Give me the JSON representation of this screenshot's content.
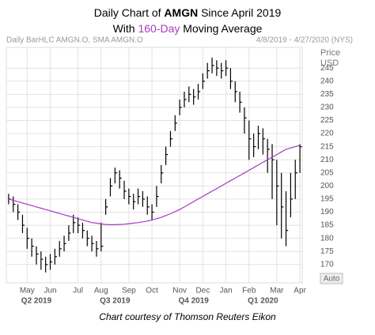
{
  "chart_data": {
    "type": "hlc",
    "title": [
      "Daily Chart of ",
      "AMGN",
      " Since April 2019"
    ],
    "subtitle": [
      "With ",
      "160-Day",
      " Moving Average"
    ],
    "header_left": "Daily BarHLC AMGN.O, SMA AMGN.O",
    "header_right": "4/8/2019 - 4/27/2020 (NYS)",
    "y_axis_label": [
      "Price",
      "USD"
    ],
    "auto_label": "Auto",
    "caption": "Chart courtesy of Thomson Reuters Eikon",
    "categories": [
      null,
      null,
      null,
      null,
      "May",
      null,
      null,
      null,
      null,
      "Jun",
      null,
      null,
      null,
      null,
      null,
      "Jul",
      null,
      null,
      null,
      null,
      "Aug",
      null,
      null,
      null,
      null,
      null,
      "Sep",
      null,
      null,
      null,
      null,
      "Oct",
      null,
      null,
      null,
      null,
      null,
      "Nov",
      null,
      null,
      null,
      null,
      "Dec",
      null,
      null,
      null,
      null,
      "Jan",
      null,
      null,
      null,
      null,
      "Feb",
      null,
      null,
      null,
      null,
      null,
      "Mar",
      null,
      null,
      null,
      null,
      "Apr"
    ],
    "quarters": [
      null,
      null,
      null,
      null,
      null,
      null,
      "Q2 2019",
      null,
      null,
      null,
      null,
      null,
      null,
      null,
      null,
      null,
      null,
      null,
      null,
      null,
      null,
      null,
      null,
      "Q3 2019",
      null,
      null,
      null,
      null,
      null,
      null,
      null,
      null,
      null,
      null,
      null,
      null,
      null,
      null,
      null,
      null,
      "Q4 2019",
      null,
      null,
      null,
      null,
      null,
      null,
      null,
      null,
      null,
      null,
      null,
      null,
      null,
      null,
      "Q1 2020",
      null,
      null,
      null,
      null,
      null,
      null,
      null,
      null
    ],
    "series": [
      {
        "color": "#000000",
        "high": [
          197,
          196,
          193,
          189,
          184,
          180,
          177,
          175,
          173,
          174,
          176,
          179,
          181,
          185,
          189,
          188,
          186,
          183,
          181,
          179,
          186,
          195,
          203,
          207,
          206,
          202,
          199,
          197,
          199,
          198,
          196,
          193,
          200,
          208,
          215,
          221,
          227,
          233,
          236,
          238,
          237,
          239,
          243,
          247,
          249,
          248,
          247,
          248,
          245,
          240,
          236,
          230,
          225,
          220,
          223,
          222,
          218,
          216,
          210,
          205,
          198,
          205,
          210,
          216
        ],
        "low": [
          193,
          190,
          187,
          182,
          176,
          173,
          170,
          168,
          167,
          168,
          170,
          173,
          175,
          179,
          182,
          182,
          180,
          177,
          175,
          173,
          175,
          189,
          196,
          201,
          199,
          195,
          193,
          191,
          193,
          192,
          189,
          187,
          192,
          201,
          208,
          215,
          221,
          227,
          230,
          232,
          231,
          233,
          237,
          241,
          243,
          242,
          241,
          242,
          237,
          232,
          228,
          220,
          210,
          211,
          214,
          212,
          205,
          195,
          185,
          180,
          177,
          188,
          195,
          205
        ],
        "close": [
          195,
          193,
          190,
          185,
          180,
          177,
          174,
          172,
          170,
          171,
          173,
          176,
          178,
          182,
          186,
          185,
          183,
          180,
          178,
          176,
          177,
          192,
          200,
          205,
          203,
          198,
          196,
          194,
          196,
          195,
          192,
          190,
          196,
          205,
          212,
          218,
          224,
          230,
          233,
          235,
          234,
          236,
          240,
          244,
          246,
          245,
          244,
          245,
          240,
          236,
          232,
          226,
          218,
          215,
          220,
          218,
          214,
          210,
          200,
          192,
          183,
          195,
          205,
          215
        ]
      },
      {
        "color": "#a63cc0",
        "values": [
          195,
          194.5,
          194,
          193.5,
          193,
          192.5,
          192,
          191.5,
          191,
          190.5,
          190,
          189.5,
          189,
          188.5,
          188,
          187.5,
          187,
          186.5,
          186,
          185.8,
          185.5,
          185.3,
          185.2,
          185.2,
          185.3,
          185.4,
          185.6,
          185.8,
          186,
          186.3,
          186.6,
          187,
          187.5,
          188,
          188.7,
          189.4,
          190.2,
          191,
          192,
          193,
          194,
          195,
          196,
          197,
          198,
          199,
          200,
          201,
          202,
          203,
          204,
          205,
          206,
          207,
          208,
          209,
          210,
          211,
          212,
          213,
          214,
          214.5,
          215,
          215.5
        ]
      }
    ],
    "ylim": [
      163,
      252
    ],
    "yticks": [
      170,
      175,
      180,
      185,
      190,
      195,
      200,
      205,
      210,
      215,
      220,
      225,
      230,
      235,
      240,
      245
    ],
    "grid": true
  }
}
